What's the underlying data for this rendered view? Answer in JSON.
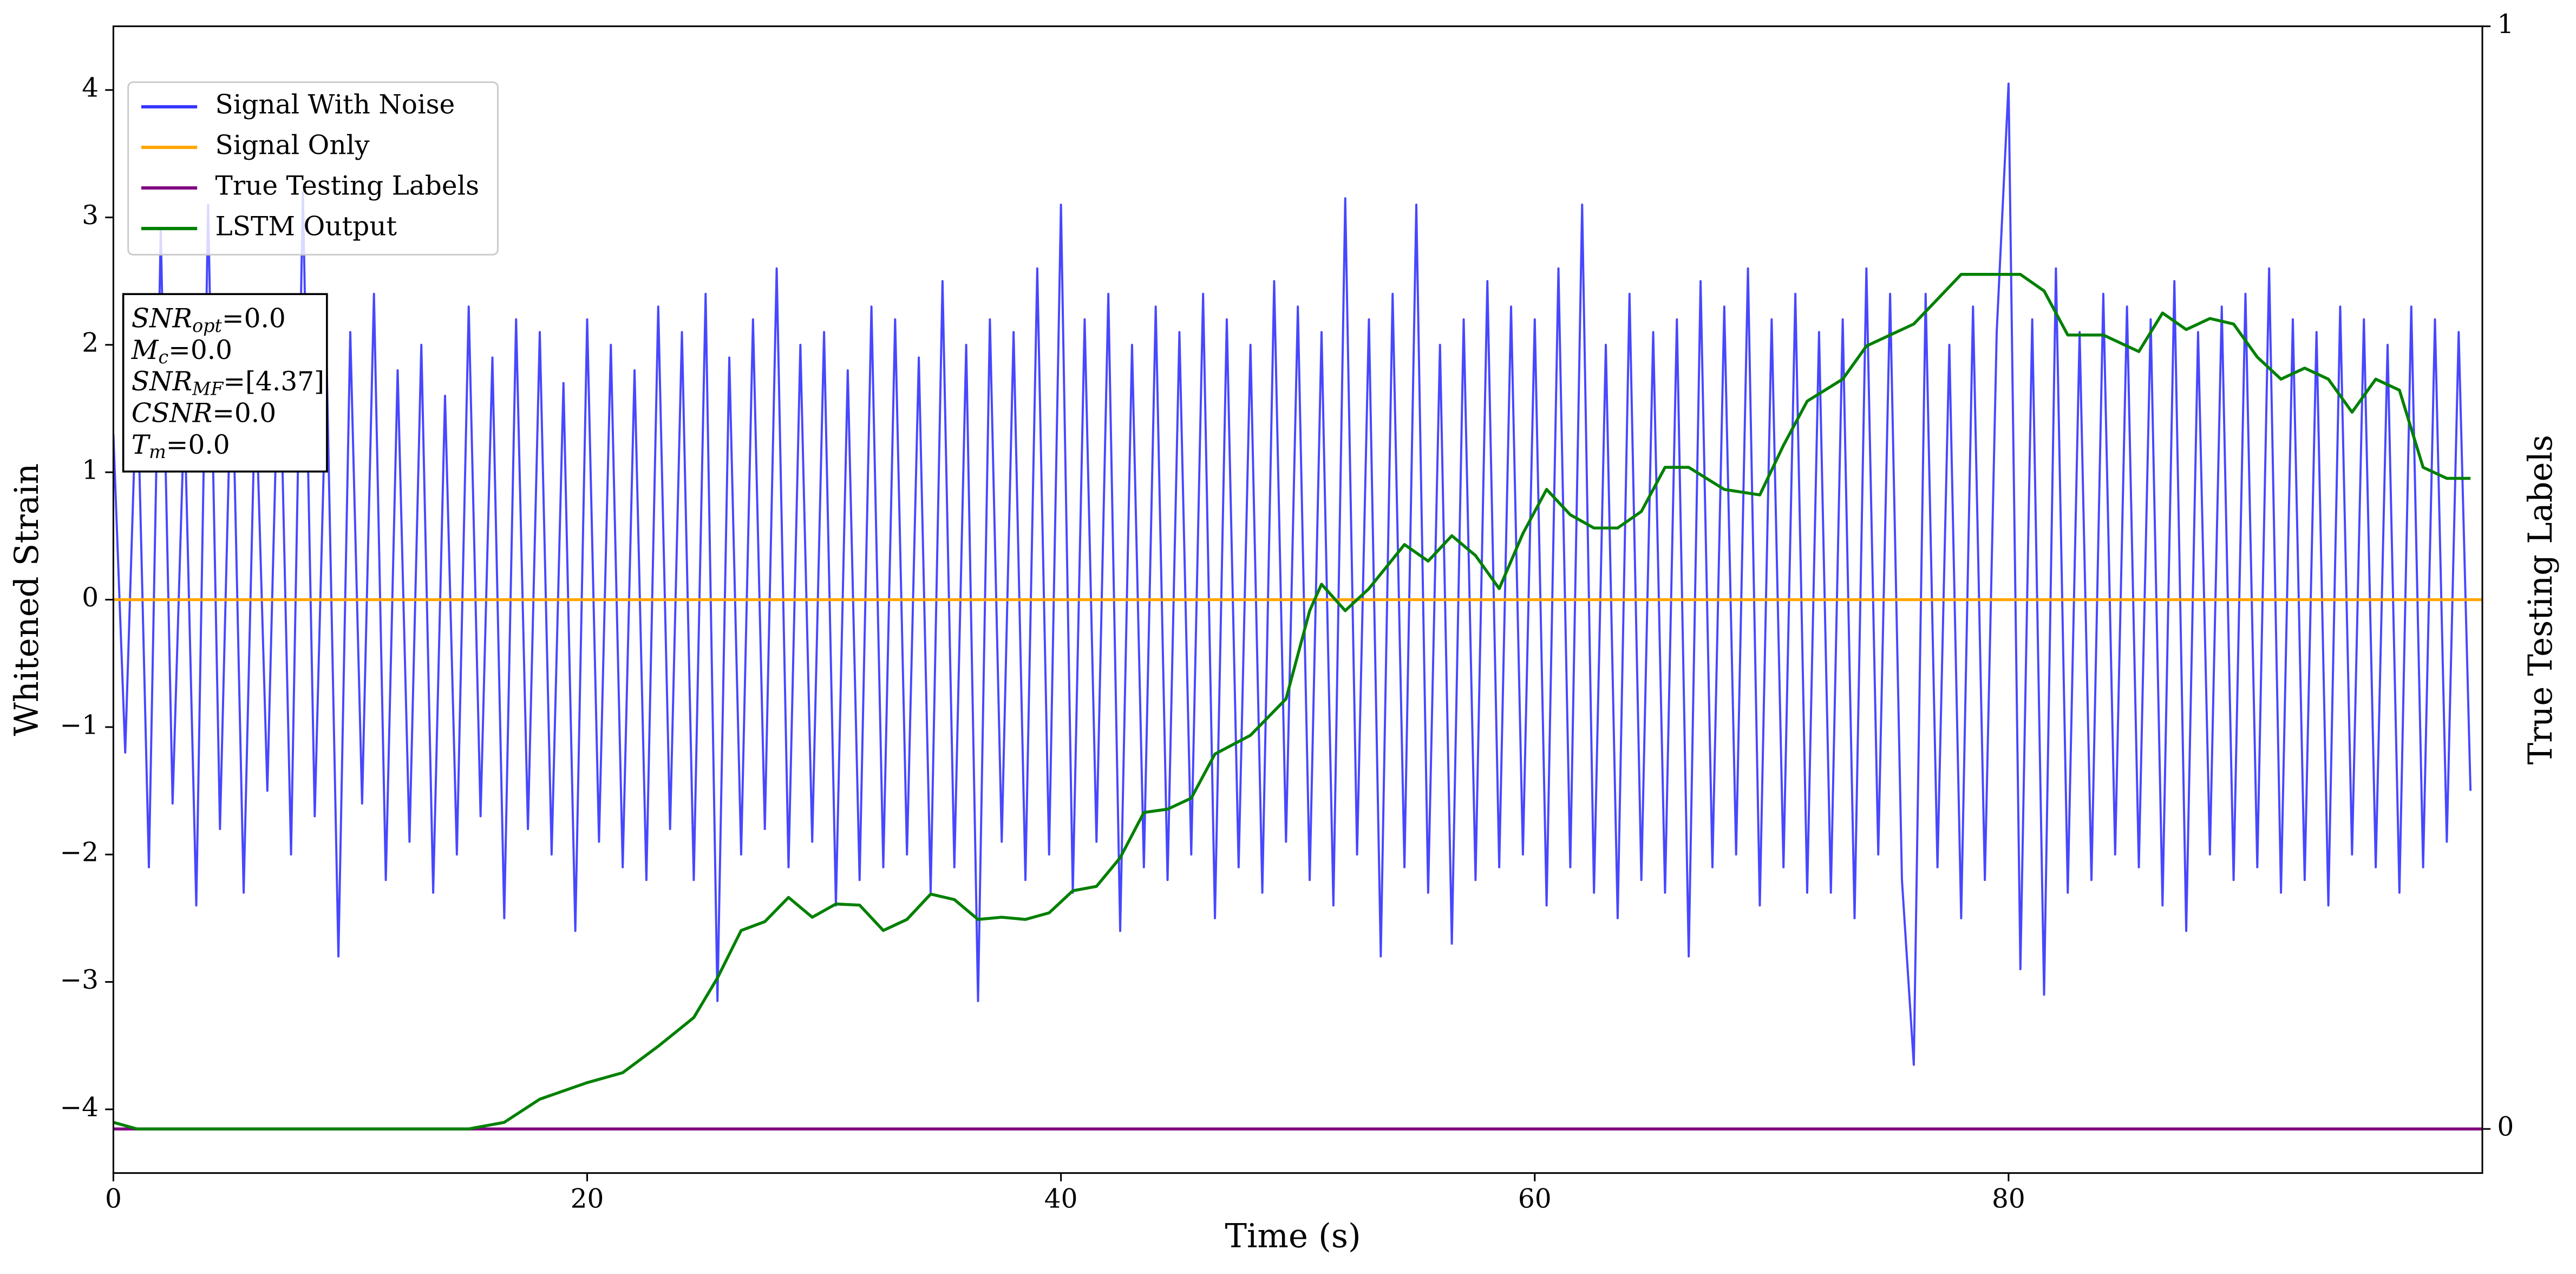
{
  "chart_data": {
    "type": "line",
    "xlabel": "Time (s)",
    "ylabel": "Whitened Strain",
    "y2label": "True Testing Labels",
    "xlim": [
      0,
      100
    ],
    "xticks": [
      0,
      20,
      40,
      60,
      80
    ],
    "ylim": [
      -4.5,
      4.5
    ],
    "yticks": [
      {
        "value": -4,
        "label": "−4"
      },
      {
        "value": -3,
        "label": "−3"
      },
      {
        "value": -2,
        "label": "−2"
      },
      {
        "value": -1,
        "label": "−1"
      },
      0,
      1,
      2,
      3,
      4
    ],
    "y2lim": [
      -0.04,
      1.0
    ],
    "y2ticks": [
      0,
      1
    ],
    "legend": "upper left",
    "series": [
      {
        "name": "Signal With Noise",
        "color": "#3333ff",
        "x": [
          0,
          0.5,
          1,
          1.5,
          2,
          2.5,
          3,
          3.5,
          4,
          4.5,
          5,
          5.5,
          6,
          6.5,
          7,
          7.5,
          8,
          8.5,
          9,
          9.5,
          10,
          10.5,
          11,
          11.5,
          12,
          12.5,
          13,
          13.5,
          14,
          14.5,
          15,
          15.5,
          16,
          16.5,
          17,
          17.5,
          18,
          18.5,
          19,
          19.5,
          20,
          20.5,
          21,
          21.5,
          22,
          22.5,
          23,
          23.5,
          24,
          24.5,
          25,
          25.5,
          26,
          26.5,
          27,
          27.5,
          28,
          28.5,
          29,
          29.5,
          30,
          30.5,
          31,
          31.5,
          32,
          32.5,
          33,
          33.5,
          34,
          34.5,
          35,
          35.5,
          36,
          36.5,
          37,
          37.5,
          38,
          38.5,
          39,
          39.5,
          40,
          40.5,
          41,
          41.5,
          42,
          42.5,
          43,
          43.5,
          44,
          44.5,
          45,
          45.5,
          46,
          46.5,
          47,
          47.5,
          48,
          48.5,
          49,
          49.5,
          50,
          50.5,
          51,
          51.5,
          52,
          52.5,
          53,
          53.5,
          54,
          54.5,
          55,
          55.5,
          56,
          56.5,
          57,
          57.5,
          58,
          58.5,
          59,
          59.5,
          60,
          60.5,
          61,
          61.5,
          62,
          62.5,
          63,
          63.5,
          64,
          64.5,
          65,
          65.5,
          66,
          66.5,
          67,
          67.5,
          68,
          68.5,
          69,
          69.5,
          70,
          70.5,
          71,
          71.5,
          72,
          72.5,
          73,
          73.5,
          74,
          74.5,
          75,
          75.5,
          76,
          76.5,
          77,
          77.5,
          78,
          78.5,
          79,
          79.5,
          80,
          80.5,
          81,
          81.5,
          82,
          82.5,
          83,
          83.5,
          84,
          84.5,
          85,
          85.5,
          86,
          86.5,
          87,
          87.5,
          88,
          88.5,
          89,
          89.5,
          90,
          90.5,
          91,
          91.5,
          92,
          92.5,
          93,
          93.5,
          94,
          94.5,
          95,
          95.5,
          96,
          96.5,
          97,
          97.5,
          98,
          98.5,
          99,
          99.5
        ],
        "values": [
          1.3,
          -1.2,
          1.8,
          -2.1,
          2.9,
          -1.6,
          1.5,
          -2.4,
          3.1,
          -1.8,
          2.0,
          -2.3,
          1.7,
          -1.5,
          2.2,
          -2.0,
          3.2,
          -1.7,
          1.9,
          -2.8,
          2.1,
          -1.6,
          2.4,
          -2.2,
          1.8,
          -1.9,
          2.0,
          -2.3,
          1.6,
          -2.0,
          2.3,
          -1.7,
          1.9,
          -2.5,
          2.2,
          -1.8,
          2.1,
          -2.0,
          1.7,
          -2.6,
          2.2,
          -1.9,
          2.0,
          -2.1,
          1.8,
          -2.2,
          2.3,
          -1.8,
          2.1,
          -2.2,
          2.4,
          -3.15,
          1.9,
          -2.0,
          2.2,
          -1.8,
          2.6,
          -2.1,
          2.0,
          -1.9,
          2.1,
          -2.4,
          1.8,
          -2.2,
          2.3,
          -2.1,
          2.2,
          -2.0,
          1.9,
          -2.3,
          2.5,
          -2.1,
          2.0,
          -3.15,
          2.2,
          -1.9,
          2.1,
          -2.2,
          2.6,
          -2.0,
          3.1,
          -2.3,
          2.2,
          -1.9,
          2.4,
          -2.6,
          2.0,
          -2.1,
          2.3,
          -2.2,
          2.1,
          -2.0,
          2.4,
          -2.5,
          2.2,
          -2.1,
          2.0,
          -2.3,
          2.5,
          -1.9,
          2.3,
          -2.2,
          2.1,
          -2.4,
          3.15,
          -2.0,
          2.2,
          -2.8,
          2.4,
          -2.1,
          3.1,
          -2.3,
          2.0,
          -2.7,
          2.2,
          -2.2,
          2.5,
          -2.1,
          2.3,
          -2.0,
          2.2,
          -2.4,
          2.6,
          -2.1,
          3.1,
          -2.3,
          2.0,
          -2.5,
          2.4,
          -2.2,
          2.1,
          -2.3,
          2.2,
          -2.8,
          2.5,
          -2.1,
          2.3,
          -2.0,
          2.6,
          -2.4,
          2.2,
          -2.1,
          2.4,
          -2.3,
          2.1,
          -2.3,
          2.2,
          -2.5,
          2.6,
          -2.0,
          2.4,
          -2.2,
          -3.65,
          2.4,
          -2.1,
          2.0,
          -2.5,
          2.3,
          -2.2,
          2.1,
          4.05,
          -2.9,
          2.2,
          -3.1,
          2.6,
          -2.3,
          2.1,
          -2.2,
          2.4,
          -2.0,
          2.3,
          -2.1,
          2.2,
          -2.4,
          2.5,
          -2.6,
          2.1,
          -2.0,
          2.3,
          -2.2,
          2.4,
          -2.1,
          2.6,
          -2.3,
          2.2,
          -2.2,
          2.1,
          -2.4,
          2.3,
          -2.0,
          2.2,
          -2.1,
          2.0,
          -2.3,
          2.3,
          -2.1,
          2.2,
          -1.9,
          2.1,
          -1.5
        ]
      },
      {
        "name": "Signal Only",
        "color": "#ffa500",
        "x": [
          0,
          100
        ],
        "values": [
          0,
          0
        ]
      },
      {
        "name": "True Testing Labels",
        "color": "#800080",
        "axis": "y2",
        "x": [
          0,
          100
        ],
        "values": [
          0,
          0
        ]
      },
      {
        "name": "LSTM Output",
        "color": "#008000",
        "axis": "y2",
        "x": [
          0,
          1,
          15,
          16.5,
          18,
          20,
          21.5,
          23,
          24.5,
          25.5,
          26.5,
          27.5,
          28.5,
          29.5,
          30.5,
          31.5,
          32.5,
          33.5,
          34.5,
          35.5,
          36.5,
          37.5,
          38.5,
          39.5,
          40.5,
          41.5,
          42.5,
          43.5,
          44.5,
          45.5,
          46.5,
          48,
          49.5,
          50.5,
          51,
          52,
          53,
          54.5,
          55.5,
          56.5,
          57.5,
          58.5,
          59.5,
          60.5,
          61.5,
          62.5,
          63.5,
          64.5,
          65.5,
          66.5,
          68,
          69.5,
          70.5,
          71.5,
          73,
          74,
          75,
          76,
          78,
          79,
          80.5,
          81.5,
          82.5,
          84,
          85.5,
          86.5,
          87.5,
          88.5,
          89.5,
          90.5,
          91.5,
          92.5,
          93.5,
          94.5,
          95.5,
          96.5,
          97.5,
          98.5,
          99.5
        ],
        "values": [
          0.006,
          0,
          0,
          0.006,
          0.027,
          0.042,
          0.051,
          0.075,
          0.101,
          0.137,
          0.18,
          0.188,
          0.21,
          0.192,
          0.204,
          0.203,
          0.18,
          0.19,
          0.213,
          0.208,
          0.19,
          0.192,
          0.19,
          0.196,
          0.216,
          0.22,
          0.246,
          0.287,
          0.29,
          0.3,
          0.34,
          0.357,
          0.39,
          0.47,
          0.494,
          0.47,
          0.49,
          0.53,
          0.515,
          0.538,
          0.52,
          0.49,
          0.54,
          0.58,
          0.557,
          0.545,
          0.545,
          0.56,
          0.6,
          0.6,
          0.58,
          0.575,
          0.62,
          0.66,
          0.68,
          0.71,
          0.72,
          0.73,
          0.775,
          0.775,
          0.775,
          0.76,
          0.72,
          0.72,
          0.705,
          0.74,
          0.725,
          0.735,
          0.73,
          0.7,
          0.68,
          0.69,
          0.68,
          0.65,
          0.68,
          0.67,
          0.6,
          0.59,
          0.59
        ]
      }
    ],
    "annotation": [
      {
        "symbol": "SNR",
        "subscript": "opt",
        "text": "=0.0"
      },
      {
        "symbol": "M",
        "subscript": "c",
        "text": "=0.0"
      },
      {
        "symbol": "SNR",
        "subscript": "MF",
        "text": "=[4.37]"
      },
      {
        "symbol": "CSNR",
        "text": "=0.0"
      },
      {
        "symbol": "T",
        "subscript": "m",
        "text": "=0.0"
      }
    ]
  }
}
